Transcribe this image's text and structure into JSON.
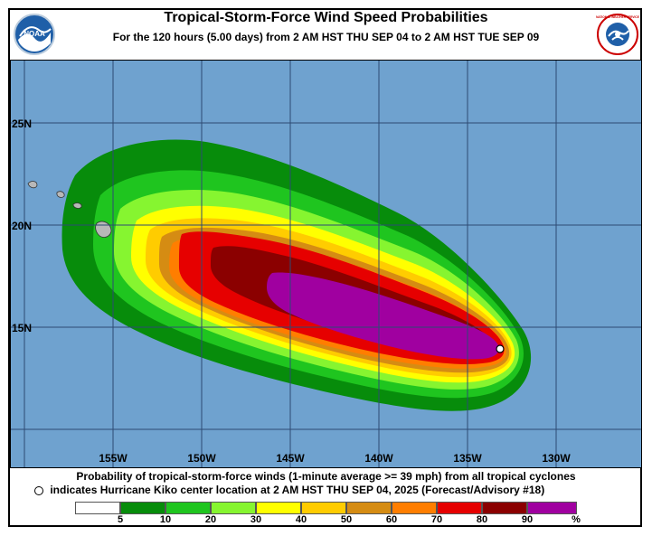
{
  "header": {
    "title": "Tropical-Storm-Force Wind Speed Probabilities",
    "subtitle": "For the 120 hours (5.00 days) from 2 AM HST THU SEP 04 to 2 AM HST TUE SEP 09",
    "left_logo_text": "NOAA",
    "right_logo_text": "NATIONAL WEATHER SERVICE"
  },
  "map": {
    "ocean_color": "#6fa2cf",
    "grid_color": "#3c5a80",
    "latitude_labels": [
      "25N",
      "20N",
      "15N"
    ],
    "longitude_labels": [
      "155W",
      "150W",
      "145W",
      "140W",
      "135W",
      "130W"
    ],
    "storm_center_marker": "white-circle-icon"
  },
  "footer": {
    "line1": "Probability of tropical-storm-force winds (1-minute average >= 39 mph) from all tropical cyclones",
    "line2": "indicates Hurricane Kiko center location at 2 AM HST THU SEP 04, 2025 (Forecast/Advisory #18)"
  },
  "legend": {
    "labels": [
      "5",
      "10",
      "20",
      "30",
      "40",
      "50",
      "60",
      "70",
      "80",
      "90",
      "%"
    ],
    "colors": [
      "#ffffff",
      "#078c0b",
      "#1fc51f",
      "#86f530",
      "#ffff00",
      "#ffcc00",
      "#d58c13",
      "#ff7e00",
      "#e60000",
      "#8b0000",
      "#a000a0"
    ]
  }
}
